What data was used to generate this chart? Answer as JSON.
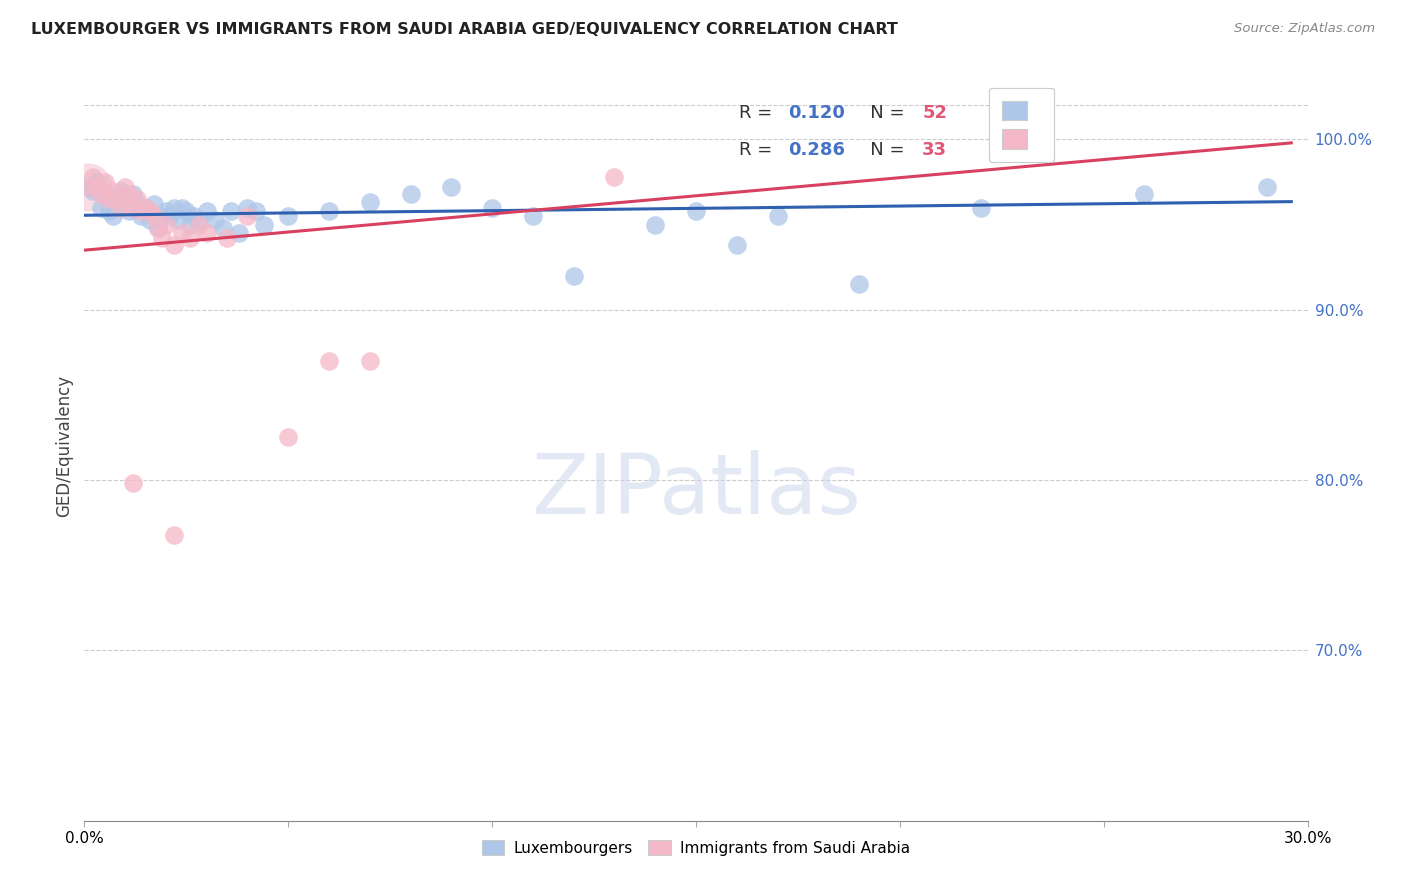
{
  "title": "LUXEMBOURGER VS IMMIGRANTS FROM SAUDI ARABIA GED/EQUIVALENCY CORRELATION CHART",
  "source": "Source: ZipAtlas.com",
  "ylabel": "GED/Equivalency",
  "right_yticks": [
    "100.0%",
    "90.0%",
    "80.0%",
    "70.0%"
  ],
  "right_ytick_vals": [
    1.0,
    0.9,
    0.8,
    0.7
  ],
  "xlim": [
    0.0,
    0.3
  ],
  "ylim": [
    0.6,
    1.04
  ],
  "legend1_r": "0.120",
  "legend1_n": "52",
  "legend2_r": "0.286",
  "legend2_n": "33",
  "blue_color": "#aec6e8",
  "pink_color": "#f4b8c8",
  "blue_line_color": "#3060b0",
  "pink_line_color": "#d84060",
  "r_color": "#4472c4",
  "n_blue_color": "#e05878",
  "watermark_color": "#ccd8ec",
  "grid_color": "#cccccc",
  "lux_points": [
    [
      0.001,
      0.972
    ],
    [
      0.002,
      0.97
    ],
    [
      0.003,
      0.975
    ],
    [
      0.004,
      0.96
    ],
    [
      0.005,
      0.968
    ],
    [
      0.006,
      0.958
    ],
    [
      0.007,
      0.955
    ],
    [
      0.008,
      0.963
    ],
    [
      0.009,
      0.97
    ],
    [
      0.01,
      0.965
    ],
    [
      0.011,
      0.958
    ],
    [
      0.012,
      0.968
    ],
    [
      0.013,
      0.962
    ],
    [
      0.014,
      0.955
    ],
    [
      0.015,
      0.96
    ],
    [
      0.016,
      0.953
    ],
    [
      0.017,
      0.962
    ],
    [
      0.018,
      0.948
    ],
    [
      0.019,
      0.955
    ],
    [
      0.02,
      0.958
    ],
    [
      0.021,
      0.955
    ],
    [
      0.022,
      0.96
    ],
    [
      0.023,
      0.953
    ],
    [
      0.024,
      0.96
    ],
    [
      0.025,
      0.958
    ],
    [
      0.026,
      0.95
    ],
    [
      0.027,
      0.955
    ],
    [
      0.028,
      0.952
    ],
    [
      0.03,
      0.958
    ],
    [
      0.032,
      0.953
    ],
    [
      0.034,
      0.948
    ],
    [
      0.036,
      0.958
    ],
    [
      0.038,
      0.945
    ],
    [
      0.04,
      0.96
    ],
    [
      0.042,
      0.958
    ],
    [
      0.044,
      0.95
    ],
    [
      0.05,
      0.955
    ],
    [
      0.06,
      0.958
    ],
    [
      0.07,
      0.963
    ],
    [
      0.08,
      0.968
    ],
    [
      0.09,
      0.972
    ],
    [
      0.1,
      0.96
    ],
    [
      0.11,
      0.955
    ],
    [
      0.12,
      0.92
    ],
    [
      0.14,
      0.95
    ],
    [
      0.15,
      0.958
    ],
    [
      0.16,
      0.938
    ],
    [
      0.17,
      0.955
    ],
    [
      0.19,
      0.915
    ],
    [
      0.22,
      0.96
    ],
    [
      0.26,
      0.968
    ],
    [
      0.29,
      0.972
    ]
  ],
  "saudi_points": [
    [
      0.001,
      0.972
    ],
    [
      0.002,
      0.978
    ],
    [
      0.003,
      0.972
    ],
    [
      0.004,
      0.968
    ],
    [
      0.005,
      0.975
    ],
    [
      0.006,
      0.965
    ],
    [
      0.007,
      0.97
    ],
    [
      0.008,
      0.965
    ],
    [
      0.009,
      0.96
    ],
    [
      0.01,
      0.972
    ],
    [
      0.011,
      0.968
    ],
    [
      0.012,
      0.96
    ],
    [
      0.013,
      0.965
    ],
    [
      0.014,
      0.958
    ],
    [
      0.015,
      0.96
    ],
    [
      0.016,
      0.958
    ],
    [
      0.017,
      0.955
    ],
    [
      0.018,
      0.948
    ],
    [
      0.019,
      0.942
    ],
    [
      0.02,
      0.95
    ],
    [
      0.022,
      0.938
    ],
    [
      0.024,
      0.945
    ],
    [
      0.026,
      0.942
    ],
    [
      0.028,
      0.95
    ],
    [
      0.03,
      0.945
    ],
    [
      0.035,
      0.942
    ],
    [
      0.04,
      0.955
    ],
    [
      0.05,
      0.825
    ],
    [
      0.06,
      0.87
    ],
    [
      0.07,
      0.87
    ],
    [
      0.13,
      0.978
    ],
    [
      0.012,
      0.798
    ],
    [
      0.022,
      0.768
    ]
  ],
  "blue_line": [
    0.0,
    0.296,
    0.9555,
    0.9635
  ],
  "pink_line": [
    0.0,
    0.296,
    0.935,
    0.998
  ]
}
